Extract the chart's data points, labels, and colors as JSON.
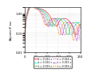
{
  "title": "",
  "xlabel": "f = f$_n$ (Hz)",
  "ylabel": "A$_{dynamic}$/F$_{max}$",
  "xlim": [
    0,
    250
  ],
  "ylim": [
    0.01,
    2
  ],
  "yscale": "log",
  "times": [
    0.011,
    0.012,
    0.013,
    0.014,
    0.015,
    0.016
  ],
  "colors": [
    "#ff4444",
    "#44dddd",
    "#44cc44",
    "#dd44dd",
    "#9944cc",
    "#ff8800"
  ],
  "linestyles": [
    "-",
    "-",
    "--",
    ":",
    ":",
    ":"
  ],
  "legend_labels": [
    "t = 0.011 s",
    "t = 0.012 s",
    "t = 0.013 s",
    "t = 0.014 s",
    "t = 0.015 s",
    "t = 0.016 s"
  ],
  "background_color": "#ffffff",
  "grid": false,
  "yticks": [
    0.01,
    0.1,
    1
  ],
  "xticks": [
    0,
    50,
    100,
    150,
    200,
    250
  ]
}
